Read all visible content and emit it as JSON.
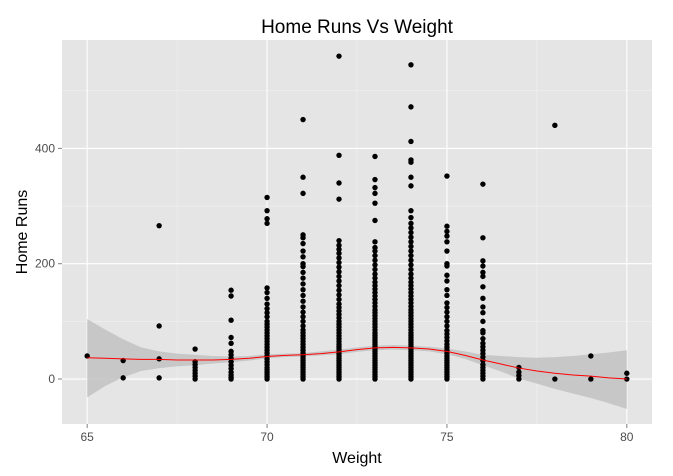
{
  "chart_data": {
    "type": "scatter",
    "title": "Home Runs Vs Weight",
    "xlabel": "Weight",
    "ylabel": "Home Runs",
    "xlim": [
      64.3,
      80.7
    ],
    "ylim": [
      -78,
      588
    ],
    "x_ticks": [
      65,
      70,
      75,
      80
    ],
    "y_ticks": [
      0,
      200,
      400
    ],
    "grid": true,
    "colors": {
      "panel": "#e5e5e5",
      "grid_major": "#ffffff",
      "grid_minor": "#f2f2f2",
      "points": "#000000",
      "smooth": "#ff0000",
      "ribbon": "#c2c2c2"
    },
    "points": [
      [
        65,
        40
      ],
      [
        66,
        2
      ],
      [
        66,
        32
      ],
      [
        67,
        2
      ],
      [
        67,
        35
      ],
      [
        67,
        92
      ],
      [
        67,
        266
      ],
      [
        68,
        0
      ],
      [
        68,
        5
      ],
      [
        68,
        10
      ],
      [
        68,
        15
      ],
      [
        68,
        20
      ],
      [
        68,
        25
      ],
      [
        68,
        30
      ],
      [
        68,
        52
      ],
      [
        69,
        0
      ],
      [
        69,
        3
      ],
      [
        69,
        7
      ],
      [
        69,
        12
      ],
      [
        69,
        18
      ],
      [
        69,
        24
      ],
      [
        69,
        30
      ],
      [
        69,
        36
      ],
      [
        69,
        42
      ],
      [
        69,
        48
      ],
      [
        69,
        62
      ],
      [
        69,
        72
      ],
      [
        69,
        102
      ],
      [
        69,
        144
      ],
      [
        69,
        154
      ],
      [
        70,
        0
      ],
      [
        70,
        4
      ],
      [
        70,
        8
      ],
      [
        70,
        12
      ],
      [
        70,
        16
      ],
      [
        70,
        20
      ],
      [
        70,
        25
      ],
      [
        70,
        30
      ],
      [
        70,
        35
      ],
      [
        70,
        40
      ],
      [
        70,
        45
      ],
      [
        70,
        50
      ],
      [
        70,
        55
      ],
      [
        70,
        60
      ],
      [
        70,
        65
      ],
      [
        70,
        70
      ],
      [
        70,
        75
      ],
      [
        70,
        80
      ],
      [
        70,
        85
      ],
      [
        70,
        90
      ],
      [
        70,
        95
      ],
      [
        70,
        100
      ],
      [
        70,
        108
      ],
      [
        70,
        115
      ],
      [
        70,
        122
      ],
      [
        70,
        130
      ],
      [
        70,
        140
      ],
      [
        70,
        150
      ],
      [
        70,
        158
      ],
      [
        70,
        270
      ],
      [
        70,
        278
      ],
      [
        70,
        292
      ],
      [
        70,
        315
      ],
      [
        71,
        0
      ],
      [
        71,
        4
      ],
      [
        71,
        8
      ],
      [
        71,
        12
      ],
      [
        71,
        16
      ],
      [
        71,
        20
      ],
      [
        71,
        24
      ],
      [
        71,
        28
      ],
      [
        71,
        32
      ],
      [
        71,
        36
      ],
      [
        71,
        40
      ],
      [
        71,
        45
      ],
      [
        71,
        50
      ],
      [
        71,
        55
      ],
      [
        71,
        60
      ],
      [
        71,
        65
      ],
      [
        71,
        70
      ],
      [
        71,
        75
      ],
      [
        71,
        80
      ],
      [
        71,
        85
      ],
      [
        71,
        92
      ],
      [
        71,
        100
      ],
      [
        71,
        108
      ],
      [
        71,
        116
      ],
      [
        71,
        125
      ],
      [
        71,
        135
      ],
      [
        71,
        145
      ],
      [
        71,
        155
      ],
      [
        71,
        165
      ],
      [
        71,
        175
      ],
      [
        71,
        185
      ],
      [
        71,
        195
      ],
      [
        71,
        200
      ],
      [
        71,
        212
      ],
      [
        71,
        222
      ],
      [
        71,
        235
      ],
      [
        71,
        245
      ],
      [
        71,
        250
      ],
      [
        71,
        322
      ],
      [
        71,
        350
      ],
      [
        71,
        450
      ],
      [
        72,
        0
      ],
      [
        72,
        4
      ],
      [
        72,
        8
      ],
      [
        72,
        12
      ],
      [
        72,
        16
      ],
      [
        72,
        20
      ],
      [
        72,
        24
      ],
      [
        72,
        28
      ],
      [
        72,
        32
      ],
      [
        72,
        36
      ],
      [
        72,
        40
      ],
      [
        72,
        44
      ],
      [
        72,
        48
      ],
      [
        72,
        52
      ],
      [
        72,
        56
      ],
      [
        72,
        60
      ],
      [
        72,
        65
      ],
      [
        72,
        70
      ],
      [
        72,
        75
      ],
      [
        72,
        80
      ],
      [
        72,
        85
      ],
      [
        72,
        90
      ],
      [
        72,
        95
      ],
      [
        72,
        100
      ],
      [
        72,
        106
      ],
      [
        72,
        112
      ],
      [
        72,
        118
      ],
      [
        72,
        124
      ],
      [
        72,
        130
      ],
      [
        72,
        138
      ],
      [
        72,
        146
      ],
      [
        72,
        154
      ],
      [
        72,
        162
      ],
      [
        72,
        170
      ],
      [
        72,
        178
      ],
      [
        72,
        186
      ],
      [
        72,
        194
      ],
      [
        72,
        202
      ],
      [
        72,
        210
      ],
      [
        72,
        218
      ],
      [
        72,
        225
      ],
      [
        72,
        232
      ],
      [
        72,
        240
      ],
      [
        72,
        312
      ],
      [
        72,
        340
      ],
      [
        72,
        388
      ],
      [
        72,
        560
      ],
      [
        73,
        0
      ],
      [
        73,
        4
      ],
      [
        73,
        8
      ],
      [
        73,
        12
      ],
      [
        73,
        16
      ],
      [
        73,
        20
      ],
      [
        73,
        24
      ],
      [
        73,
        28
      ],
      [
        73,
        32
      ],
      [
        73,
        36
      ],
      [
        73,
        40
      ],
      [
        73,
        44
      ],
      [
        73,
        48
      ],
      [
        73,
        52
      ],
      [
        73,
        56
      ],
      [
        73,
        60
      ],
      [
        73,
        64
      ],
      [
        73,
        68
      ],
      [
        73,
        72
      ],
      [
        73,
        76
      ],
      [
        73,
        80
      ],
      [
        73,
        85
      ],
      [
        73,
        90
      ],
      [
        73,
        95
      ],
      [
        73,
        100
      ],
      [
        73,
        105
      ],
      [
        73,
        110
      ],
      [
        73,
        115
      ],
      [
        73,
        120
      ],
      [
        73,
        126
      ],
      [
        73,
        132
      ],
      [
        73,
        138
      ],
      [
        73,
        144
      ],
      [
        73,
        150
      ],
      [
        73,
        156
      ],
      [
        73,
        162
      ],
      [
        73,
        168
      ],
      [
        73,
        175
      ],
      [
        73,
        182
      ],
      [
        73,
        190
      ],
      [
        73,
        198
      ],
      [
        73,
        206
      ],
      [
        73,
        214
      ],
      [
        73,
        222
      ],
      [
        73,
        228
      ],
      [
        73,
        238
      ],
      [
        73,
        275
      ],
      [
        73,
        305
      ],
      [
        73,
        322
      ],
      [
        73,
        332
      ],
      [
        73,
        346
      ],
      [
        73,
        386
      ],
      [
        74,
        0
      ],
      [
        74,
        4
      ],
      [
        74,
        8
      ],
      [
        74,
        12
      ],
      [
        74,
        16
      ],
      [
        74,
        20
      ],
      [
        74,
        24
      ],
      [
        74,
        28
      ],
      [
        74,
        32
      ],
      [
        74,
        36
      ],
      [
        74,
        40
      ],
      [
        74,
        44
      ],
      [
        74,
        48
      ],
      [
        74,
        52
      ],
      [
        74,
        56
      ],
      [
        74,
        60
      ],
      [
        74,
        64
      ],
      [
        74,
        68
      ],
      [
        74,
        72
      ],
      [
        74,
        76
      ],
      [
        74,
        80
      ],
      [
        74,
        85
      ],
      [
        74,
        90
      ],
      [
        74,
        95
      ],
      [
        74,
        100
      ],
      [
        74,
        105
      ],
      [
        74,
        110
      ],
      [
        74,
        115
      ],
      [
        74,
        120
      ],
      [
        74,
        126
      ],
      [
        74,
        132
      ],
      [
        74,
        138
      ],
      [
        74,
        144
      ],
      [
        74,
        150
      ],
      [
        74,
        156
      ],
      [
        74,
        162
      ],
      [
        74,
        168
      ],
      [
        74,
        175
      ],
      [
        74,
        182
      ],
      [
        74,
        190
      ],
      [
        74,
        198
      ],
      [
        74,
        206
      ],
      [
        74,
        214
      ],
      [
        74,
        222
      ],
      [
        74,
        230
      ],
      [
        74,
        238
      ],
      [
        74,
        246
      ],
      [
        74,
        254
      ],
      [
        74,
        262
      ],
      [
        74,
        270
      ],
      [
        74,
        280
      ],
      [
        74,
        292
      ],
      [
        74,
        335
      ],
      [
        74,
        350
      ],
      [
        74,
        376
      ],
      [
        74,
        380
      ],
      [
        74,
        412
      ],
      [
        74,
        472
      ],
      [
        74,
        545
      ],
      [
        75,
        0
      ],
      [
        75,
        4
      ],
      [
        75,
        8
      ],
      [
        75,
        12
      ],
      [
        75,
        16
      ],
      [
        75,
        20
      ],
      [
        75,
        24
      ],
      [
        75,
        28
      ],
      [
        75,
        32
      ],
      [
        75,
        36
      ],
      [
        75,
        40
      ],
      [
        75,
        45
      ],
      [
        75,
        50
      ],
      [
        75,
        55
      ],
      [
        75,
        60
      ],
      [
        75,
        66
      ],
      [
        75,
        72
      ],
      [
        75,
        78
      ],
      [
        75,
        84
      ],
      [
        75,
        92
      ],
      [
        75,
        100
      ],
      [
        75,
        108
      ],
      [
        75,
        116
      ],
      [
        75,
        124
      ],
      [
        75,
        132
      ],
      [
        75,
        145
      ],
      [
        75,
        155
      ],
      [
        75,
        170
      ],
      [
        75,
        180
      ],
      [
        75,
        196
      ],
      [
        75,
        200
      ],
      [
        75,
        222
      ],
      [
        75,
        238
      ],
      [
        75,
        248
      ],
      [
        75,
        256
      ],
      [
        75,
        265
      ],
      [
        75,
        352
      ],
      [
        76,
        0
      ],
      [
        76,
        5
      ],
      [
        76,
        10
      ],
      [
        76,
        15
      ],
      [
        76,
        20
      ],
      [
        76,
        25
      ],
      [
        76,
        32
      ],
      [
        76,
        38
      ],
      [
        76,
        44
      ],
      [
        76,
        50
      ],
      [
        76,
        56
      ],
      [
        76,
        62
      ],
      [
        76,
        70
      ],
      [
        76,
        80
      ],
      [
        76,
        84
      ],
      [
        76,
        100
      ],
      [
        76,
        115
      ],
      [
        76,
        125
      ],
      [
        76,
        140
      ],
      [
        76,
        160
      ],
      [
        76,
        178
      ],
      [
        76,
        185
      ],
      [
        76,
        196
      ],
      [
        76,
        205
      ],
      [
        76,
        245
      ],
      [
        76,
        338
      ],
      [
        77,
        0
      ],
      [
        77,
        6
      ],
      [
        77,
        12
      ],
      [
        77,
        20
      ],
      [
        78,
        0
      ],
      [
        78,
        440
      ],
      [
        79,
        0
      ],
      [
        79,
        40
      ],
      [
        80,
        0
      ],
      [
        80,
        10
      ]
    ],
    "smooth": [
      [
        65,
        37
      ],
      [
        65.5,
        36
      ],
      [
        66,
        35
      ],
      [
        66.5,
        34
      ],
      [
        67,
        34
      ],
      [
        67.5,
        33
      ],
      [
        68,
        33
      ],
      [
        68.5,
        33
      ],
      [
        69,
        34
      ],
      [
        69.5,
        36
      ],
      [
        70,
        39
      ],
      [
        70.5,
        41
      ],
      [
        71,
        42
      ],
      [
        71.5,
        44
      ],
      [
        72,
        47
      ],
      [
        72.5,
        51
      ],
      [
        73,
        54
      ],
      [
        73.5,
        55
      ],
      [
        74,
        54
      ],
      [
        74.5,
        52
      ],
      [
        75,
        48
      ],
      [
        75.5,
        41
      ],
      [
        76,
        33
      ],
      [
        76.5,
        26
      ],
      [
        77,
        19
      ],
      [
        77.5,
        14
      ],
      [
        78,
        10
      ],
      [
        78.5,
        7
      ],
      [
        79,
        5
      ],
      [
        79.5,
        2
      ],
      [
        80,
        0
      ]
    ],
    "ribbon": [
      [
        65,
        -32,
        104
      ],
      [
        65.5,
        -12,
        86
      ],
      [
        66,
        3,
        69
      ],
      [
        66.5,
        14,
        55
      ],
      [
        67,
        19,
        48
      ],
      [
        67.5,
        22,
        44
      ],
      [
        68,
        24,
        42
      ],
      [
        68.5,
        27,
        40
      ],
      [
        69,
        29,
        39
      ],
      [
        69.5,
        32,
        40
      ],
      [
        70,
        36,
        43
      ],
      [
        70.5,
        38,
        44
      ],
      [
        71,
        39,
        45
      ],
      [
        71.5,
        41,
        48
      ],
      [
        72,
        43,
        51
      ],
      [
        72.5,
        47,
        55
      ],
      [
        73,
        50,
        58
      ],
      [
        73.5,
        51,
        59
      ],
      [
        74,
        50,
        58
      ],
      [
        74.5,
        48,
        56
      ],
      [
        75,
        43,
        53
      ],
      [
        75.5,
        35,
        48
      ],
      [
        76,
        24,
        42
      ],
      [
        76.5,
        13,
        40
      ],
      [
        77,
        1,
        38
      ],
      [
        77.5,
        -8,
        37
      ],
      [
        78,
        -17,
        38
      ],
      [
        78.5,
        -25,
        40
      ],
      [
        79,
        -33,
        43
      ],
      [
        79.5,
        -42,
        46
      ],
      [
        80,
        -52,
        50
      ]
    ]
  }
}
